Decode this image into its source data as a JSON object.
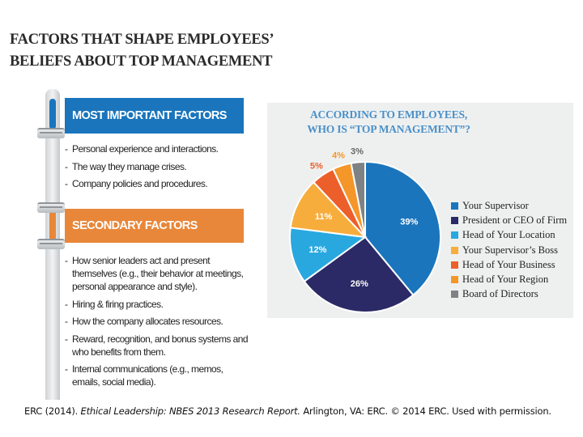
{
  "title": {
    "line1": "FACTORS THAT SHAPE EMPLOYEES’",
    "line2": "BELIEFS ABOUT TOP MANAGEMENT"
  },
  "factors": {
    "most_important": {
      "heading": "MOST IMPORTANT FACTORS",
      "items": [
        "Personal experience and interactions.",
        "The way they manage crises.",
        "Company policies and procedures."
      ]
    },
    "secondary": {
      "heading": "SECONDARY FACTORS",
      "items": [
        "How senior leaders act and present themselves (e.g., their behavior at meetings, personal appearance and style).",
        "Hiring & firing practices.",
        "How the company allocates resources.",
        "Reward, recognition, and bonus systems and who benefits from them.",
        "Internal communications (e.g., memos, emails, social media)."
      ]
    },
    "colors": {
      "most_important": "#1a75bc",
      "secondary": "#e8873a"
    }
  },
  "chart_data": {
    "type": "pie",
    "title": "ACCORDING TO EMPLOYEES, WHO IS “TOP MANAGEMENT”?",
    "title_lines": [
      "ACCORDING TO EMPLOYEES,",
      "WHO IS “TOP MANAGEMENT”?"
    ],
    "start": "top",
    "direction": "clockwise",
    "legend_placement": "right",
    "slices": [
      {
        "label": "Your Supervisor",
        "value": 39,
        "data_label": "39%",
        "color": "#1a75bc"
      },
      {
        "label": "President or CEO of Firm",
        "value": 26,
        "data_label": "26%",
        "color": "#2b2a66"
      },
      {
        "label": "Head of Your Location",
        "value": 12,
        "data_label": "12%",
        "color": "#29a8e0"
      },
      {
        "label": "Your Supervisor’s Boss",
        "value": 11,
        "data_label": "11%",
        "color": "#f7ad3c"
      },
      {
        "label": "Head of Your Business",
        "value": 5,
        "data_label": "5%",
        "color": "#ec5f2a"
      },
      {
        "label": "Head of Your Region",
        "value": 4,
        "data_label": "4%",
        "color": "#f5962a"
      },
      {
        "label": "Board of Directors",
        "value": 3,
        "data_label": "3%",
        "color": "#7f8285"
      }
    ]
  },
  "citation": {
    "prefix": "ERC (2014).",
    "work": "Ethical Leadership: NBES 2013 Research Report.",
    "suffix": "Arlington, VA: ERC. © 2014 ERC. Used with permission."
  }
}
